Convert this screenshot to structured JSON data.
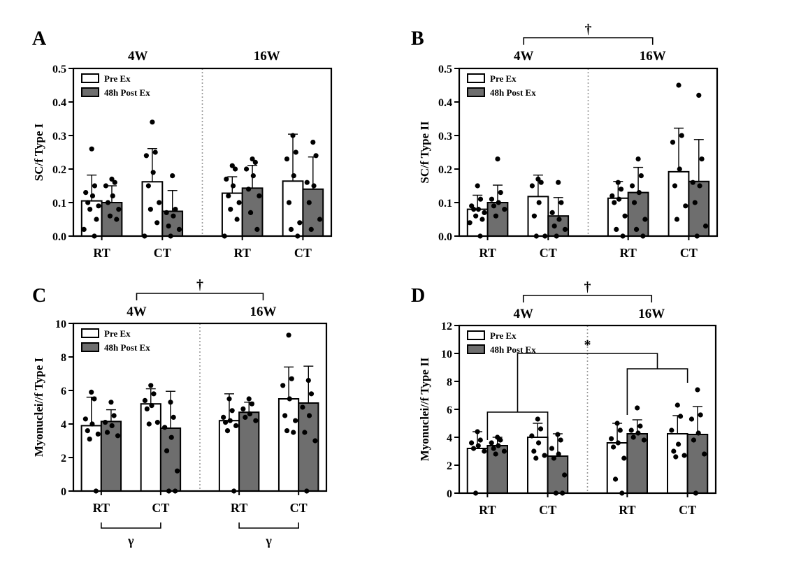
{
  "figure": {
    "legend": {
      "pre": "Pre Ex",
      "post": "48h Post Ex"
    },
    "colors": {
      "pre_fill": "#ffffff",
      "post_fill": "#6e6e6e",
      "dot": "#000000",
      "divider": "#999999"
    }
  },
  "chart_data": [
    {
      "panel": "A",
      "type": "bar",
      "ylabel": "SC/f Type I",
      "ylim": [
        0,
        0.5
      ],
      "yticks": [
        0,
        0.1,
        0.2,
        0.3,
        0.4,
        0.5
      ],
      "tick_decimals": 1,
      "groups": [
        "4W",
        "16W"
      ],
      "categories": [
        "RT",
        "CT",
        "RT",
        "CT"
      ],
      "series": [
        {
          "name": "Pre Ex",
          "values": [
            0.105,
            0.162,
            0.128,
            0.164
          ],
          "sd": [
            0.077,
            0.099,
            0.049,
            0.14
          ],
          "points": [
            [
              0.26,
              0.15,
              0.13,
              0.12,
              0.1,
              0.09,
              0.08,
              0.05,
              0.02,
              0.0
            ],
            [
              0.34,
              0.25,
              0.24,
              0.19,
              0.15,
              0.1,
              0.08,
              0.04,
              0.0
            ],
            [
              0.21,
              0.2,
              0.17,
              0.15,
              0.12,
              0.1,
              0.08,
              0.05,
              0.0
            ],
            [
              0.3,
              0.25,
              0.23,
              0.18,
              0.1,
              0.04,
              0.02,
              0.0
            ]
          ]
        },
        {
          "name": "48h Post Ex",
          "values": [
            0.1,
            0.074,
            0.143,
            0.14
          ],
          "sd": [
            0.05,
            0.062,
            0.068,
            0.096
          ],
          "points": [
            [
              0.17,
              0.16,
              0.15,
              0.12,
              0.1,
              0.08,
              0.06,
              0.05
            ],
            [
              0.18,
              0.08,
              0.07,
              0.06,
              0.03,
              0.02,
              0.0
            ],
            [
              0.23,
              0.22,
              0.2,
              0.18,
              0.14,
              0.12,
              0.07,
              0.02
            ],
            [
              0.28,
              0.24,
              0.16,
              0.15,
              0.1,
              0.05,
              0.02
            ]
          ]
        }
      ],
      "annotations": []
    },
    {
      "panel": "B",
      "type": "bar",
      "ylabel": "SC/f Type II",
      "ylim": [
        0,
        0.5
      ],
      "yticks": [
        0,
        0.1,
        0.2,
        0.3,
        0.4,
        0.5
      ],
      "tick_decimals": 1,
      "groups": [
        "4W",
        "16W"
      ],
      "categories": [
        "RT",
        "CT",
        "RT",
        "CT"
      ],
      "series": [
        {
          "name": "Pre Ex",
          "values": [
            0.08,
            0.118,
            0.113,
            0.192
          ],
          "sd": [
            0.042,
            0.064,
            0.05,
            0.13
          ],
          "points": [
            [
              0.15,
              0.11,
              0.09,
              0.08,
              0.08,
              0.07,
              0.06,
              0.05,
              0.04,
              0.0
            ],
            [
              0.17,
              0.16,
              0.15,
              0.1,
              0.06,
              0.0,
              0.0
            ],
            [
              0.16,
              0.14,
              0.12,
              0.11,
              0.1,
              0.06,
              0.02,
              0.0
            ],
            [
              0.45,
              0.3,
              0.28,
              0.2,
              0.15,
              0.09,
              0.05
            ]
          ]
        },
        {
          "name": "48h Post Ex",
          "values": [
            0.1,
            0.06,
            0.13,
            0.163
          ],
          "sd": [
            0.052,
            0.055,
            0.075,
            0.125
          ],
          "points": [
            [
              0.23,
              0.13,
              0.11,
              0.1,
              0.09,
              0.08,
              0.06
            ],
            [
              0.16,
              0.1,
              0.07,
              0.05,
              0.03,
              0.02,
              0.0
            ],
            [
              0.23,
              0.18,
              0.15,
              0.13,
              0.1,
              0.05,
              0.02,
              0.0
            ],
            [
              0.42,
              0.23,
              0.16,
              0.15,
              0.1,
              0.03,
              0.0
            ]
          ]
        }
      ],
      "annotations": [
        {
          "symbol": "†",
          "from_group": "4W",
          "to_group": "16W"
        }
      ]
    },
    {
      "panel": "C",
      "type": "bar",
      "ylabel": "Myonuclei//f Type I",
      "ylim": [
        0,
        10
      ],
      "yticks": [
        0,
        2,
        4,
        6,
        8,
        10
      ],
      "tick_decimals": 0,
      "groups": [
        "4W",
        "16W"
      ],
      "categories": [
        "RT",
        "CT",
        "RT",
        "CT"
      ],
      "series": [
        {
          "name": "Pre Ex",
          "values": [
            3.9,
            5.2,
            4.2,
            5.5
          ],
          "sd": [
            1.7,
            0.9,
            1.6,
            1.9
          ],
          "points": [
            [
              5.9,
              5.5,
              4.3,
              4.0,
              3.6,
              3.4,
              3.1,
              0.0
            ],
            [
              6.3,
              5.8,
              5.4,
              5.1,
              4.9,
              4.1,
              4.0
            ],
            [
              5.5,
              4.8,
              4.4,
              4.2,
              4.1,
              3.9,
              3.6,
              0.0
            ],
            [
              9.3,
              6.7,
              6.3,
              5.5,
              4.5,
              4.2,
              3.6,
              3.5
            ]
          ]
        },
        {
          "name": "48h Post Ex",
          "values": [
            4.15,
            3.75,
            4.7,
            5.25
          ],
          "sd": [
            0.7,
            2.2,
            0.6,
            2.2
          ],
          "points": [
            [
              5.3,
              4.5,
              4.1,
              3.9,
              3.5,
              3.3
            ],
            [
              5.3,
              4.4,
              3.8,
              3.2,
              2.4,
              1.2,
              0.0,
              0.0
            ],
            [
              5.5,
              5.2,
              4.9,
              4.6,
              4.4,
              4.2
            ],
            [
              6.6,
              5.8,
              5.0,
              4.5,
              3.5,
              3.0,
              0.0
            ]
          ]
        }
      ],
      "annotations": [
        {
          "symbol": "†",
          "from_group": "4W",
          "to_group": "16W"
        }
      ],
      "below_annotations": [
        {
          "symbol": "γ",
          "group": "4W"
        },
        {
          "symbol": "γ",
          "group": "16W"
        }
      ]
    },
    {
      "panel": "D",
      "type": "bar",
      "ylabel": "Myonuclei//f Type II",
      "ylim": [
        0,
        12
      ],
      "yticks": [
        0,
        2,
        4,
        6,
        8,
        10,
        12
      ],
      "tick_decimals": 0,
      "groups": [
        "4W",
        "16W"
      ],
      "categories": [
        "RT",
        "CT",
        "RT",
        "CT"
      ],
      "series": [
        {
          "name": "Pre Ex",
          "values": [
            3.2,
            4.0,
            3.6,
            4.25
          ],
          "sd": [
            1.2,
            1.0,
            1.4,
            1.3
          ],
          "points": [
            [
              4.4,
              3.8,
              3.6,
              3.4,
              3.2,
              3.0,
              0.0
            ],
            [
              5.3,
              4.6,
              4.1,
              3.6,
              3.0,
              2.7,
              2.5
            ],
            [
              5.0,
              4.5,
              3.9,
              3.6,
              3.3,
              2.5,
              1.0,
              0.0
            ],
            [
              6.3,
              5.5,
              4.5,
              3.5,
              3.0,
              2.7,
              2.6
            ]
          ]
        },
        {
          "name": "48h Post Ex",
          "values": [
            3.4,
            2.65,
            4.25,
            4.2
          ],
          "sd": [
            0.6,
            1.6,
            1.0,
            2.0
          ],
          "points": [
            [
              4.0,
              3.8,
              3.6,
              3.4,
              3.2,
              3.0,
              2.8
            ],
            [
              4.2,
              3.8,
              3.2,
              2.8,
              2.5,
              1.3,
              0.0,
              0.0
            ],
            [
              6.1,
              4.8,
              4.5,
              4.3,
              4.0,
              3.8
            ],
            [
              7.4,
              5.6,
              5.3,
              4.3,
              3.8,
              2.8,
              0.0
            ]
          ]
        }
      ],
      "annotations": [
        {
          "symbol": "†",
          "from_group": "4W",
          "to_group": "16W"
        }
      ],
      "comparison_brackets": [
        {
          "symbol": "*",
          "levels": [
            [
              3.8,
              5.8
            ],
            [
              9.2,
              10.0
            ]
          ]
        }
      ]
    }
  ]
}
